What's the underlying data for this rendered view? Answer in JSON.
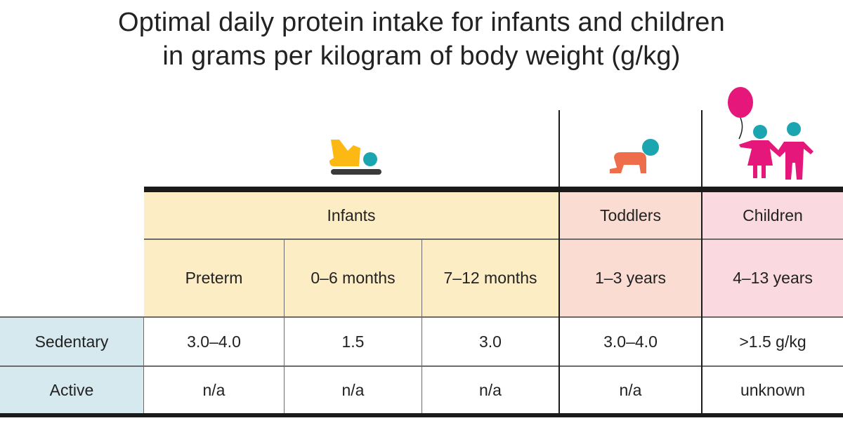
{
  "chart_data": {
    "type": "table",
    "title": [
      "Optimal daily protein intake for infants and children",
      "in grams per kilogram of body weight (g/kg)"
    ],
    "groups": [
      {
        "label": "Infants",
        "icon": "baby-lying-icon",
        "color": "#fdedc5",
        "columns": [
          "Preterm",
          "0–6 months",
          "7–12 months"
        ]
      },
      {
        "label": "Toddlers",
        "icon": "crawling-toddler-icon",
        "color": "#fbdcd2",
        "columns": [
          "1–3 years"
        ]
      },
      {
        "label": "Children",
        "icon": "children-balloon-icon",
        "color": "#fadae0",
        "columns": [
          "4–13 years"
        ]
      }
    ],
    "rows": [
      {
        "label": "Sedentary",
        "values": [
          "3.0–4.0",
          "1.5",
          "3.0",
          "3.0–4.0",
          ">1.5 g/kg"
        ]
      },
      {
        "label": "Active",
        "values": [
          "n/a",
          "n/a",
          "n/a",
          "n/a",
          "unknown"
        ]
      }
    ],
    "row_header_color": "#d6e9ef"
  }
}
